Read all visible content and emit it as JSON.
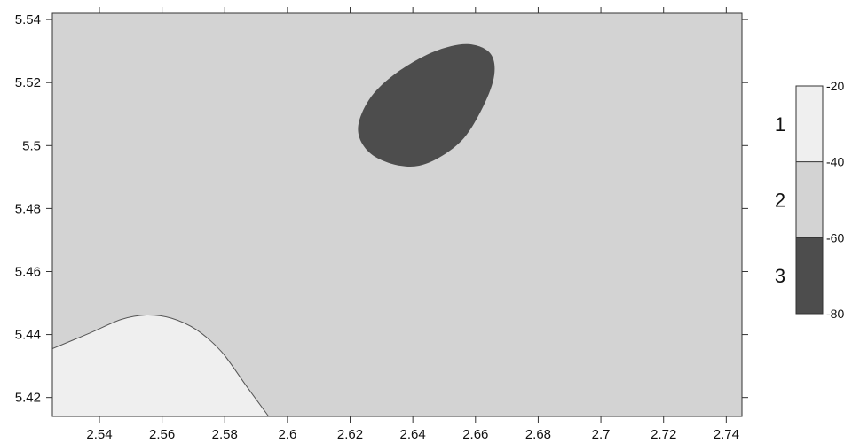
{
  "chart_data": {
    "type": "contour",
    "title": "",
    "xlabel": "",
    "ylabel": "",
    "xlim": [
      2.525,
      2.745
    ],
    "ylim": [
      5.414,
      5.542
    ],
    "x_ticks": [
      2.54,
      2.56,
      2.58,
      2.6,
      2.62,
      2.64,
      2.66,
      2.68,
      2.7,
      2.72,
      2.74
    ],
    "x_tick_labels": [
      "2.54",
      "2.56",
      "2.58",
      "2.6",
      "2.62",
      "2.64",
      "2.66",
      "2.68",
      "2.7",
      "2.72",
      "2.74"
    ],
    "y_ticks": [
      5.42,
      5.44,
      5.46,
      5.48,
      5.5,
      5.52,
      5.54
    ],
    "y_tick_labels": [
      "5.42",
      "5.44",
      "5.46",
      "5.48",
      "5.5",
      "5.52",
      "5.54"
    ],
    "background_fill": "#d3d3d3",
    "regions": [
      {
        "id": "low-left-zone",
        "level_range": [
          -40,
          -20
        ],
        "fill": "#efefef",
        "boundary": [
          [
            2.525,
            5.4355
          ],
          [
            2.537,
            5.4405
          ],
          [
            2.547,
            5.4448
          ],
          [
            2.555,
            5.4462
          ],
          [
            2.563,
            5.4452
          ],
          [
            2.571,
            5.4415
          ],
          [
            2.579,
            5.4345
          ],
          [
            2.587,
            5.4235
          ],
          [
            2.594,
            5.414
          ],
          [
            2.525,
            5.414
          ]
        ]
      },
      {
        "id": "upper-blob",
        "level_range": [
          -80,
          -60
        ],
        "fill": "#4d4d4d",
        "boundary": [
          [
            2.657,
            5.5322
          ],
          [
            2.646,
            5.5295
          ],
          [
            2.634,
            5.5225
          ],
          [
            2.626,
            5.5145
          ],
          [
            2.6225,
            5.505
          ],
          [
            2.6265,
            5.4975
          ],
          [
            2.636,
            5.4936
          ],
          [
            2.645,
            5.4945
          ],
          [
            2.6555,
            5.5015
          ],
          [
            2.6625,
            5.5125
          ],
          [
            2.666,
            5.5225
          ],
          [
            2.6645,
            5.5295
          ]
        ]
      }
    ],
    "legend": {
      "tick_labels": [
        "-20",
        "-40",
        "-60",
        "-80"
      ],
      "tick_values": [
        -20,
        -40,
        -60,
        -80
      ],
      "bands": [
        {
          "label": "1",
          "range": [
            -40,
            -20
          ],
          "color": "#efefef"
        },
        {
          "label": "2",
          "range": [
            -60,
            -40
          ],
          "color": "#d3d3d3"
        },
        {
          "label": "3",
          "range": [
            -80,
            -60
          ],
          "color": "#4d4d4d"
        }
      ]
    },
    "grid": false,
    "colors": {
      "axis": "#333333",
      "region_border": "#555555"
    }
  }
}
